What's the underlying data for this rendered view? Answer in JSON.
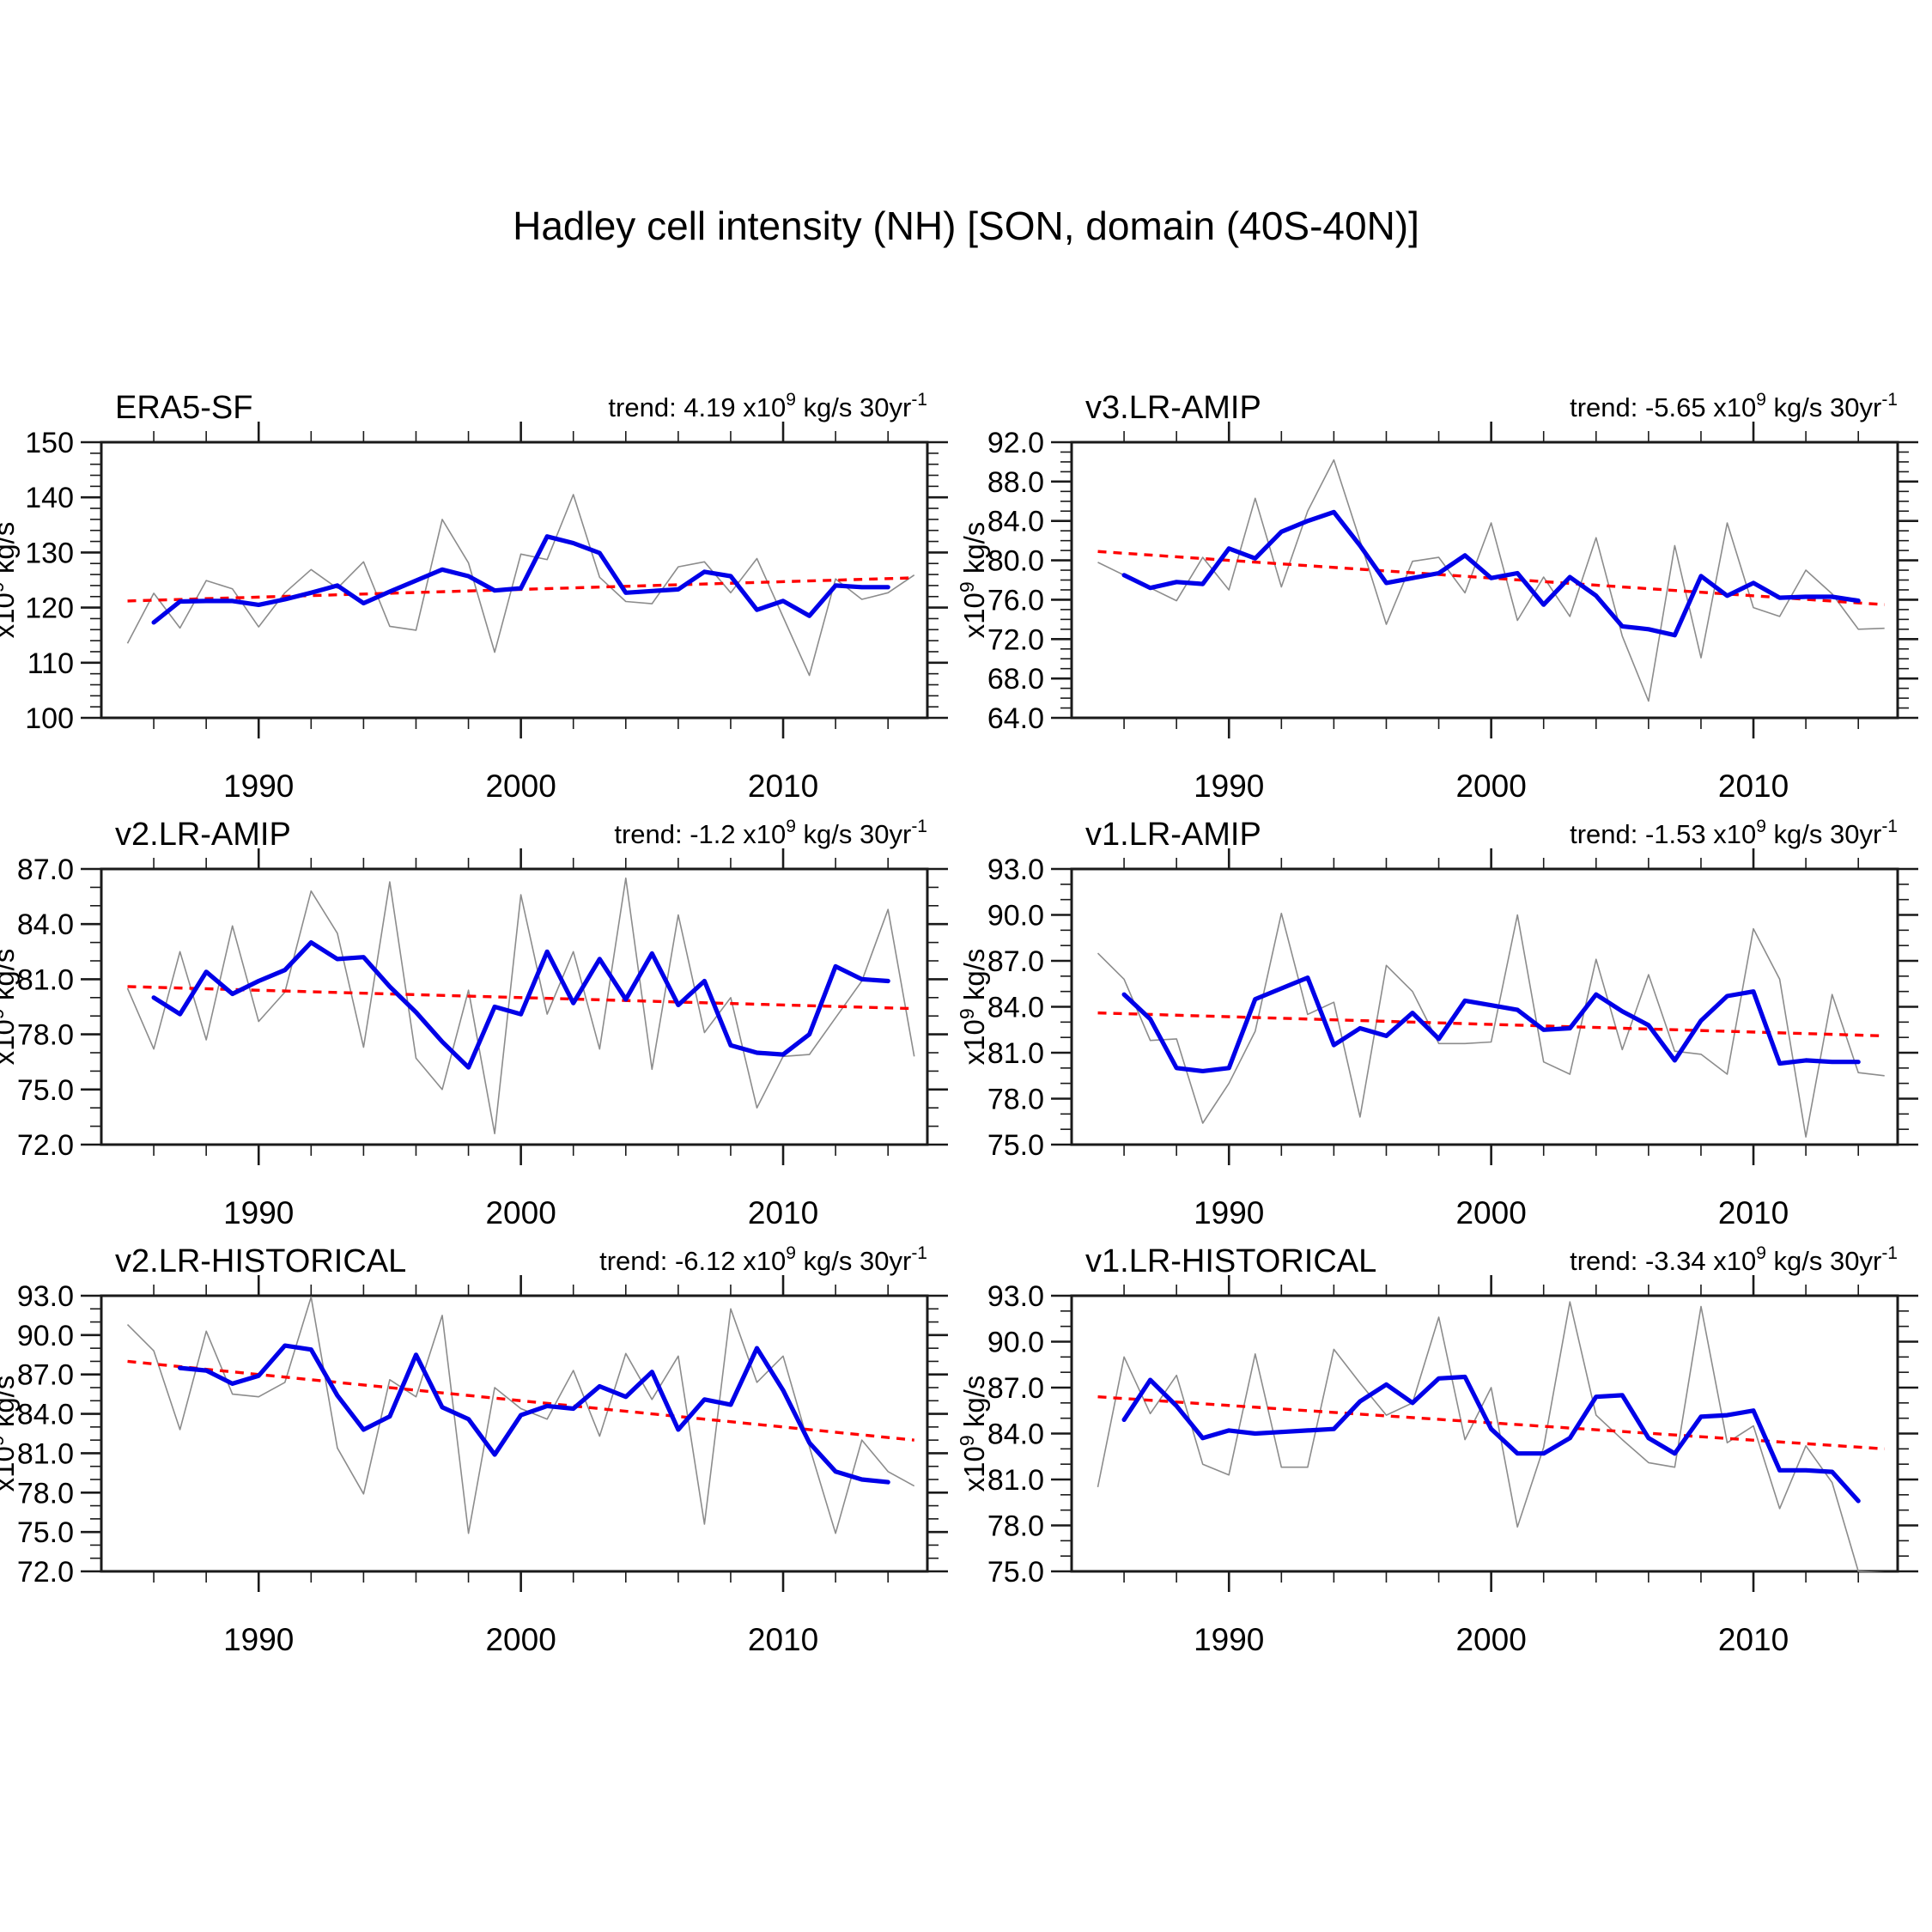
{
  "title": "Hadley cell intensity (NH) [SON, domain (40S-40N)]",
  "labels": {
    "trend_prefix": "trend: ",
    "x10": " x10",
    "exp9": "9",
    "trend_unit": " kg/s 30yr",
    "exp_minus1": "-1",
    "y_unit_base": "x10",
    "y_unit_exp": "9",
    "y_unit_rest": " kg/s"
  },
  "colors": {
    "raw_line": "#8c8c8c",
    "smoothed_line": "#0000e8",
    "trend_line": "#ff0000",
    "axis": "#1a1a1a",
    "text": "#000000"
  },
  "x_axis": {
    "tick_labels": [
      "1990",
      "2000",
      "2010"
    ],
    "major_ticks": [
      1990,
      2000,
      2010
    ],
    "minor_step": 2,
    "range": [
      1984,
      2015.5
    ]
  },
  "chart_data": [
    {
      "type": "line",
      "title": "ERA5-SF",
      "trend_value": "4.19",
      "trend_label_full": "trend: 4.19 x10^9 kg/s 30yr^-1",
      "ylabel": "x10^9 kg/s",
      "ylim": [
        100,
        150
      ],
      "y_major_step": 10,
      "y_minor_step": 2,
      "y_tick_labels": [
        "100",
        "110",
        "120",
        "130",
        "140",
        "150"
      ],
      "years": [
        1985,
        1986,
        1987,
        1988,
        1989,
        1990,
        1991,
        1992,
        1993,
        1994,
        1995,
        1996,
        1997,
        1998,
        1999,
        2000,
        2001,
        2002,
        2003,
        2004,
        2005,
        2006,
        2007,
        2008,
        2009,
        2010,
        2011,
        2012,
        2013,
        2014,
        2015
      ],
      "raw": [
        113.5,
        122.6,
        116.3,
        124.9,
        123.4,
        116.5,
        122.7,
        126.9,
        123.5,
        128.3,
        116.6,
        115.9,
        136.0,
        128.1,
        111.9,
        129.7,
        128.7,
        140.5,
        125.5,
        121.1,
        120.7,
        127.4,
        128.3,
        122.7,
        128.9,
        118.3,
        107.7,
        125.2,
        121.5,
        122.7,
        125.9
      ],
      "smoothed_start": 1986,
      "smoothed": [
        117.3,
        121.1,
        121.2,
        121.2,
        120.5,
        121.5,
        122.7,
        124.0,
        120.8,
        122.9,
        124.9,
        126.9,
        125.7,
        123.1,
        123.5,
        132.9,
        131.7,
        129.9,
        122.7,
        123.0,
        123.3,
        126.5,
        125.7,
        119.6,
        121.2,
        118.5,
        124.0,
        123.7,
        123.7
      ],
      "trend_endpoints": [
        121.2,
        125.4
      ]
    },
    {
      "type": "line",
      "title": "v3.LR-AMIP",
      "trend_value": "-5.65",
      "trend_label_full": "trend: -5.65 x10^9 kg/s 30yr^-1",
      "ylabel": "x10^9 kg/s",
      "ylim": [
        64,
        92
      ],
      "y_major_step": 4,
      "y_minor_step": 1,
      "y_tick_labels": [
        "64.0",
        "68.0",
        "72.0",
        "76.0",
        "80.0",
        "84.0",
        "88.0",
        "92.0"
      ],
      "years": [
        1985,
        1986,
        1987,
        1988,
        1989,
        1990,
        1991,
        1992,
        1993,
        1994,
        1995,
        1996,
        1997,
        1998,
        1999,
        2000,
        2001,
        2002,
        2003,
        2004,
        2005,
        2006,
        2007,
        2008,
        2009,
        2010,
        2011,
        2012,
        2013,
        2014,
        2015
      ],
      "raw": [
        79.8,
        78.5,
        77.2,
        75.9,
        80.3,
        77.0,
        86.3,
        77.3,
        85.0,
        90.2,
        82.0,
        73.5,
        79.9,
        80.3,
        76.7,
        83.8,
        73.9,
        78.3,
        74.3,
        82.3,
        72.3,
        65.7,
        81.5,
        70.1,
        83.8,
        75.2,
        74.3,
        79.0,
        76.6,
        73.0,
        73.1
      ],
      "smoothed_start": 1986,
      "smoothed": [
        78.5,
        77.2,
        77.8,
        77.6,
        81.2,
        80.2,
        82.9,
        84.0,
        84.9,
        81.5,
        77.7,
        78.2,
        78.7,
        80.5,
        78.2,
        78.7,
        75.5,
        78.3,
        76.4,
        73.3,
        73.0,
        72.4,
        78.4,
        76.4,
        77.7,
        76.2,
        76.3,
        76.3,
        75.9
      ],
      "trend_endpoints": [
        80.9,
        75.5
      ]
    },
    {
      "type": "line",
      "title": "v2.LR-AMIP",
      "trend_value": "-1.2",
      "trend_label_full": "trend: -1.2 x10^9 kg/s 30yr^-1",
      "ylabel": "x10^9 kg/s",
      "ylim": [
        72,
        87
      ],
      "y_major_step": 3,
      "y_minor_step": 1,
      "y_tick_labels": [
        "72.0",
        "75.0",
        "78.0",
        "81.0",
        "84.0",
        "87.0"
      ],
      "years": [
        1985,
        1986,
        1987,
        1988,
        1989,
        1990,
        1991,
        1992,
        1993,
        1994,
        1995,
        1996,
        1997,
        1998,
        1999,
        2000,
        2001,
        2002,
        2003,
        2004,
        2005,
        2006,
        2007,
        2008,
        2009,
        2010,
        2011,
        2012,
        2013,
        2014,
        2015
      ],
      "raw": [
        80.5,
        77.2,
        82.5,
        77.7,
        83.9,
        78.7,
        80.3,
        85.8,
        83.5,
        77.3,
        86.3,
        76.7,
        75.0,
        80.4,
        72.6,
        85.6,
        79.1,
        82.5,
        77.2,
        86.5,
        76.1,
        84.5,
        78.1,
        80.0,
        74.0,
        76.8,
        76.9,
        78.9,
        80.9,
        84.8,
        76.8
      ],
      "smoothed_start": 1986,
      "smoothed": [
        80.0,
        79.1,
        81.4,
        80.2,
        80.9,
        81.5,
        83.0,
        82.1,
        82.2,
        80.6,
        79.2,
        77.6,
        76.2,
        79.5,
        79.1,
        82.5,
        79.7,
        82.1,
        79.9,
        82.4,
        79.6,
        80.9,
        77.4,
        77.0,
        76.9,
        78.0,
        81.7,
        81.0,
        80.9
      ],
      "trend_endpoints": [
        80.6,
        79.4
      ]
    },
    {
      "type": "line",
      "title": "v1.LR-AMIP",
      "trend_value": "-1.53",
      "trend_label_full": "trend: -1.53 x10^9 kg/s 30yr^-1",
      "ylabel": "x10^9 kg/s",
      "ylim": [
        75,
        93
      ],
      "y_major_step": 3,
      "y_minor_step": 1,
      "y_tick_labels": [
        "75.0",
        "78.0",
        "81.0",
        "84.0",
        "87.0",
        "90.0",
        "93.0"
      ],
      "years": [
        1985,
        1986,
        1987,
        1988,
        1989,
        1990,
        1991,
        1992,
        1993,
        1994,
        1995,
        1996,
        1997,
        1998,
        1999,
        2000,
        2001,
        2002,
        2003,
        2004,
        2005,
        2006,
        2007,
        2008,
        2009,
        2010,
        2011,
        2012,
        2013,
        2014,
        2015
      ],
      "raw": [
        87.5,
        85.8,
        81.8,
        81.9,
        76.4,
        79.0,
        82.4,
        90.1,
        83.5,
        84.3,
        76.8,
        86.7,
        85.0,
        81.6,
        81.6,
        81.7,
        90.0,
        80.4,
        79.6,
        87.1,
        81.2,
        86.1,
        81.1,
        80.9,
        79.6,
        89.1,
        85.8,
        75.5,
        84.8,
        79.7,
        79.5
      ],
      "smoothed_start": 1986,
      "smoothed": [
        84.8,
        83.2,
        80.0,
        79.8,
        80.0,
        84.5,
        85.2,
        85.9,
        81.5,
        82.6,
        82.1,
        83.6,
        81.9,
        84.4,
        84.1,
        83.8,
        82.5,
        82.6,
        84.8,
        83.7,
        82.8,
        80.5,
        83.1,
        84.7,
        85.0,
        80.3,
        80.5,
        80.4,
        80.4
      ],
      "trend_endpoints": [
        83.6,
        82.1
      ]
    },
    {
      "type": "line",
      "title": "v2.LR-HISTORICAL",
      "trend_value": "-6.12",
      "trend_label_full": "trend: -6.12 x10^9 kg/s 30yr^-1",
      "ylabel": "x10^9 kg/s",
      "ylim": [
        72,
        93
      ],
      "y_major_step": 3,
      "y_minor_step": 1,
      "y_tick_labels": [
        "72.0",
        "75.0",
        "78.0",
        "81.0",
        "84.0",
        "87.0",
        "90.0",
        "93.0"
      ],
      "years": [
        1985,
        1986,
        1987,
        1988,
        1989,
        1990,
        1991,
        1992,
        1993,
        1994,
        1995,
        1996,
        1997,
        1998,
        1999,
        2000,
        2001,
        2002,
        2003,
        2004,
        2005,
        2006,
        2007,
        2008,
        2009,
        2010,
        2011,
        2012,
        2013,
        2014,
        2015
      ],
      "raw": [
        90.8,
        88.8,
        82.8,
        90.3,
        85.5,
        85.3,
        86.4,
        92.9,
        81.4,
        77.9,
        86.6,
        85.3,
        91.5,
        74.9,
        86.0,
        84.4,
        83.6,
        87.3,
        82.3,
        88.6,
        85.1,
        88.4,
        75.6,
        92.0,
        86.4,
        88.4,
        81.5,
        74.9,
        82.0,
        79.6,
        78.5
      ],
      "smoothed_start": 1987,
      "smoothed": [
        87.5,
        87.3,
        86.3,
        86.9,
        89.2,
        88.9,
        85.4,
        82.8,
        83.8,
        88.5,
        84.5,
        83.6,
        80.9,
        83.9,
        84.6,
        84.4,
        86.1,
        85.3,
        87.2,
        82.8,
        85.1,
        84.7,
        89.0,
        85.8,
        81.8,
        79.6,
        79.0,
        78.8
      ],
      "trend_endpoints": [
        88.0,
        82.0
      ]
    },
    {
      "type": "line",
      "title": "v1.LR-HISTORICAL",
      "trend_value": "-3.34",
      "trend_label_full": "trend: -3.34 x10^9 kg/s 30yr^-1",
      "ylabel": "x10^9 kg/s",
      "ylim": [
        75,
        93
      ],
      "y_major_step": 3,
      "y_minor_step": 1,
      "y_tick_labels": [
        "75.0",
        "78.0",
        "81.0",
        "84.0",
        "87.0",
        "90.0",
        "93.0"
      ],
      "years": [
        1985,
        1986,
        1987,
        1988,
        1989,
        1990,
        1991,
        1992,
        1993,
        1994,
        1995,
        1996,
        1997,
        1998,
        1999,
        2000,
        2001,
        2002,
        2003,
        2004,
        2005,
        2006,
        2007,
        2008,
        2009,
        2010,
        2011,
        2012,
        2013,
        2014,
        2015
      ],
      "raw": [
        80.5,
        89.0,
        85.3,
        87.8,
        82.0,
        81.3,
        89.2,
        81.8,
        81.8,
        89.5,
        87.3,
        85.2,
        86.0,
        91.6,
        83.6,
        87.0,
        77.9,
        83.1,
        92.6,
        85.2,
        83.6,
        82.1,
        81.8,
        92.3,
        83.4,
        84.5,
        79.1,
        83.2,
        80.8,
        75.0,
        74.9
      ],
      "smoothed_start": 1986,
      "smoothed": [
        84.9,
        87.5,
        85.8,
        83.7,
        84.2,
        84.0,
        84.1,
        84.2,
        84.3,
        86.1,
        87.2,
        86.0,
        87.6,
        87.7,
        84.3,
        82.7,
        82.7,
        83.7,
        86.4,
        86.5,
        83.7,
        82.7,
        85.1,
        85.2,
        85.5,
        81.6,
        81.6,
        81.5,
        79.6
      ],
      "trend_endpoints": [
        86.4,
        83.0
      ]
    }
  ]
}
